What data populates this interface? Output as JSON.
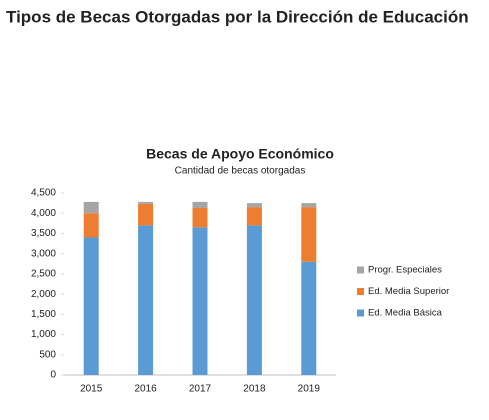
{
  "page_title": "Tipos de Becas Otorgadas por la Dirección de Educación",
  "chart_data": {
    "type": "stacked-bar",
    "title": "Becas de Apoyo Económico",
    "subtitle": "Cantidad de becas otorgadas",
    "categories": [
      "2015",
      "2016",
      "2017",
      "2018",
      "2019"
    ],
    "series": [
      {
        "name": "Ed. Media Básica",
        "color": "#5b9bd5",
        "values": [
          3400,
          3700,
          3650,
          3700,
          2800
        ]
      },
      {
        "name": "Ed. Media Superior",
        "color": "#ed7d31",
        "values": [
          600,
          530,
          480,
          450,
          1350
        ]
      },
      {
        "name": "Progr. Especiales",
        "color": "#a5a5a5",
        "values": [
          280,
          50,
          150,
          100,
          100
        ]
      }
    ],
    "ylim": [
      0,
      4500
    ],
    "yticks": [
      0,
      500,
      {
        "value": 1000,
        "label": "1,000"
      },
      {
        "value": 1500,
        "label": "1,500"
      },
      {
        "value": 2000,
        "label": "2,000"
      },
      {
        "value": 2500,
        "label": "2,500"
      },
      {
        "value": 3000,
        "label": "3,000"
      },
      {
        "value": 3500,
        "label": "3,500"
      },
      {
        "value": 4000,
        "label": "4,000"
      },
      {
        "value": 4500,
        "label": "4,500"
      }
    ],
    "grid": false,
    "legend": "right"
  }
}
